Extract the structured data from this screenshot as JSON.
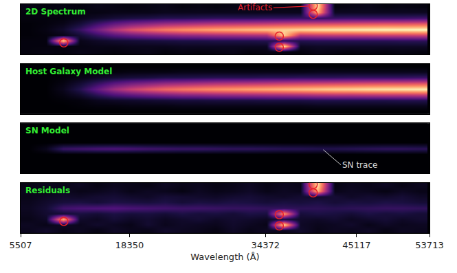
{
  "chart_data": [
    {
      "type": "heatmap",
      "title": "2D Spectrum",
      "x": [
        6507,
        8507,
        10507,
        12507,
        14507,
        16507,
        18507,
        20507,
        22507,
        24507,
        26507,
        28507,
        30507,
        32507,
        34507,
        36507,
        38507,
        40507,
        42507,
        44507,
        46507,
        48507,
        50507,
        52507
      ],
      "y": [
        0,
        1,
        2,
        3,
        4,
        5,
        6,
        7,
        8
      ],
      "z": [
        [
          0.02,
          0.03,
          0.02,
          0.04,
          0.03,
          0.02,
          0.03,
          0.04,
          0.02,
          0.03,
          0.02,
          0.03,
          0.04,
          0.02,
          0.03,
          0.03,
          0.02,
          0.04,
          0.03,
          0.02,
          0.03,
          0.02,
          0.03,
          0.02
        ],
        [
          0.02,
          0.02,
          0.03,
          0.03,
          0.04,
          0.04,
          0.05,
          0.05,
          0.05,
          0.06,
          0.06,
          0.06,
          0.06,
          0.06,
          0.06,
          0.95,
          0.06,
          0.07,
          0.07,
          0.07,
          0.07,
          0.07,
          0.07,
          0.07
        ],
        [
          0.02,
          0.02,
          0.9,
          0.04,
          0.07,
          0.09,
          0.1,
          0.11,
          0.12,
          0.13,
          0.13,
          0.14,
          0.14,
          0.14,
          0.15,
          0.15,
          0.15,
          0.16,
          0.16,
          0.16,
          0.16,
          0.16,
          0.17,
          0.17
        ],
        [
          0.01,
          0.02,
          0.04,
          0.1,
          0.19,
          0.27,
          0.32,
          0.36,
          0.39,
          0.42,
          0.43,
          0.45,
          0.46,
          0.47,
          0.48,
          0.9,
          0.5,
          0.52,
          0.53,
          0.53,
          0.54,
          0.55,
          0.55,
          0.56
        ],
        [
          0.01,
          0.03,
          0.08,
          0.19,
          0.34,
          0.49,
          0.6,
          0.67,
          0.73,
          0.77,
          0.8,
          0.83,
          0.85,
          0.87,
          0.89,
          0.91,
          0.93,
          0.95,
          0.96,
          0.97,
          0.98,
          0.99,
          0.99,
          1
        ],
        [
          0.01,
          0.02,
          0.04,
          0.1,
          0.2,
          0.29,
          0.35,
          0.39,
          0.43,
          0.45,
          0.47,
          0.49,
          0.5,
          0.51,
          0.52,
          0.54,
          0.55,
          0.56,
          0.57,
          0.58,
          0.59,
          0.6,
          0.6,
          0.61
        ],
        [
          0.02,
          0.02,
          0.02,
          0.04,
          0.07,
          0.1,
          0.12,
          0.13,
          0.15,
          0.15,
          0.16,
          0.17,
          0.17,
          0.17,
          0.18,
          0.18,
          0.19,
          0.19,
          0.19,
          0.2,
          0.2,
          0.2,
          0.2,
          0.21
        ],
        [
          0.02,
          0.03,
          0.02,
          0.03,
          0.03,
          0.04,
          0.04,
          0.04,
          0.05,
          0.05,
          0.05,
          0.05,
          0.05,
          0.05,
          0.05,
          0.05,
          0.05,
          0.85,
          0.06,
          0.06,
          0.06,
          0.06,
          0.06,
          0.06
        ],
        [
          0.03,
          0.02,
          0.03,
          0.02,
          0.04,
          0.03,
          0.02,
          0.03,
          0.04,
          0.02,
          0.03,
          0.02,
          0.03,
          0.04,
          0.02,
          0.03,
          0.03,
          0.95,
          0.02,
          0.03,
          0.04,
          0.02,
          0.03,
          0.02
        ]
      ],
      "zlim": [
        0,
        1
      ],
      "xlim": [
        5507,
        53713
      ],
      "ylim": [
        -0.5,
        8.5
      ],
      "tick_labels": false,
      "artifacts": {
        "label": "Artifacts",
        "points": [
          [
            10600,
            1.6
          ],
          [
            36000,
            2.8
          ],
          [
            36000,
            0.8
          ],
          [
            40000,
            8.2
          ],
          [
            40000,
            6.7
          ]
        ]
      }
    },
    {
      "type": "heatmap",
      "title": "Host Galaxy Model",
      "x": [
        6507,
        8507,
        10507,
        12507,
        14507,
        16507,
        18507,
        20507,
        22507,
        24507,
        26507,
        28507,
        30507,
        32507,
        34507,
        36507,
        38507,
        40507,
        42507,
        44507,
        46507,
        48507,
        50507,
        52507
      ],
      "y": [
        0,
        1,
        2,
        3,
        4,
        5,
        6,
        7,
        8
      ],
      "z": [
        [
          0,
          0,
          0,
          0,
          0,
          0,
          0,
          0,
          0,
          0,
          0,
          0,
          0,
          0,
          0,
          0,
          0,
          0,
          0,
          0,
          0,
          0,
          0,
          0
        ],
        [
          0,
          0,
          0,
          0.01,
          0.02,
          0.02,
          0.03,
          0.03,
          0.03,
          0.04,
          0.04,
          0.04,
          0.04,
          0.04,
          0.04,
          0.04,
          0.04,
          0.05,
          0.05,
          0.05,
          0.05,
          0.05,
          0.05,
          0.05
        ],
        [
          0,
          0,
          0.01,
          0.02,
          0.05,
          0.07,
          0.08,
          0.09,
          0.1,
          0.11,
          0.11,
          0.12,
          0.12,
          0.12,
          0.13,
          0.13,
          0.13,
          0.14,
          0.14,
          0.14,
          0.14,
          0.14,
          0.15,
          0.15
        ],
        [
          0,
          0,
          0.03,
          0.08,
          0.17,
          0.25,
          0.3,
          0.34,
          0.37,
          0.4,
          0.41,
          0.43,
          0.44,
          0.45,
          0.46,
          0.47,
          0.48,
          0.5,
          0.51,
          0.51,
          0.52,
          0.53,
          0.53,
          0.54
        ],
        [
          0,
          0,
          0.05,
          0.15,
          0.3,
          0.45,
          0.55,
          0.62,
          0.68,
          0.72,
          0.75,
          0.78,
          0.8,
          0.82,
          0.84,
          0.86,
          0.88,
          0.9,
          0.92,
          0.93,
          0.95,
          0.96,
          0.97,
          0.98
        ],
        [
          0,
          0,
          0.03,
          0.09,
          0.18,
          0.27,
          0.33,
          0.37,
          0.41,
          0.43,
          0.45,
          0.47,
          0.48,
          0.49,
          0.5,
          0.52,
          0.53,
          0.54,
          0.55,
          0.56,
          0.57,
          0.58,
          0.58,
          0.59
        ],
        [
          0,
          0,
          0.01,
          0.03,
          0.06,
          0.09,
          0.11,
          0.12,
          0.14,
          0.14,
          0.15,
          0.16,
          0.16,
          0.16,
          0.17,
          0.17,
          0.18,
          0.18,
          0.18,
          0.19,
          0.19,
          0.19,
          0.19,
          0.2
        ],
        [
          0,
          0,
          0,
          0.01,
          0.02,
          0.02,
          0.03,
          0.03,
          0.03,
          0.04,
          0.04,
          0.04,
          0.04,
          0.04,
          0.04,
          0.04,
          0.04,
          0.05,
          0.05,
          0.05,
          0.05,
          0.05,
          0.05,
          0.05
        ],
        [
          0,
          0,
          0,
          0,
          0,
          0,
          0,
          0,
          0,
          0,
          0,
          0,
          0,
          0,
          0,
          0,
          0,
          0,
          0,
          0,
          0,
          0,
          0,
          0
        ]
      ],
      "zlim": [
        0,
        1
      ],
      "xlim": [
        5507,
        53713
      ],
      "ylim": [
        -0.5,
        8.5
      ],
      "tick_labels": false
    },
    {
      "type": "heatmap",
      "title": "SN Model",
      "x": [
        6507,
        8507,
        10507,
        12507,
        14507,
        16507,
        18507,
        20507,
        22507,
        24507,
        26507,
        28507,
        30507,
        32507,
        34507,
        36507,
        38507,
        40507,
        42507,
        44507,
        46507,
        48507,
        50507,
        52507
      ],
      "y": [
        0,
        1,
        2,
        3,
        4,
        5,
        6,
        7,
        8
      ],
      "z": [
        [
          0,
          0,
          0,
          0,
          0,
          0,
          0,
          0,
          0,
          0,
          0,
          0,
          0,
          0,
          0,
          0,
          0,
          0,
          0,
          0,
          0,
          0,
          0,
          0
        ],
        [
          0,
          0,
          0,
          0,
          0,
          0,
          0,
          0,
          0,
          0,
          0,
          0,
          0,
          0,
          0,
          0,
          0,
          0,
          0,
          0,
          0,
          0,
          0,
          0
        ],
        [
          0,
          0,
          0,
          0,
          0,
          0,
          0,
          0,
          0,
          0,
          0,
          0,
          0,
          0,
          0,
          0,
          0,
          0,
          0,
          0,
          0,
          0,
          0,
          0
        ],
        [
          0,
          0,
          0,
          0,
          0,
          0,
          0,
          0,
          0,
          0,
          0,
          0,
          0,
          0,
          0,
          0,
          0,
          0,
          0,
          0,
          0,
          0,
          0,
          0
        ],
        [
          0,
          0.05,
          0.2,
          0.22,
          0.24,
          0.25,
          0.24,
          0.22,
          0.21,
          0.2,
          0.2,
          0.19,
          0.18,
          0.18,
          0.17,
          0.16,
          0.16,
          0.15,
          0.15,
          0.16,
          0.17,
          0.18,
          0.18,
          0.17
        ],
        [
          0,
          0,
          0,
          0,
          0,
          0,
          0,
          0,
          0,
          0,
          0,
          0,
          0,
          0,
          0,
          0,
          0,
          0,
          0,
          0,
          0,
          0,
          0,
          0
        ],
        [
          0,
          0,
          0,
          0,
          0,
          0,
          0,
          0,
          0,
          0,
          0,
          0,
          0,
          0,
          0,
          0,
          0,
          0,
          0,
          0,
          0,
          0,
          0,
          0
        ],
        [
          0,
          0,
          0,
          0,
          0,
          0,
          0,
          0,
          0,
          0,
          0,
          0,
          0,
          0,
          0,
          0,
          0,
          0,
          0,
          0,
          0,
          0,
          0,
          0
        ],
        [
          0,
          0,
          0,
          0,
          0,
          0,
          0,
          0,
          0,
          0,
          0,
          0,
          0,
          0,
          0,
          0,
          0,
          0,
          0,
          0,
          0,
          0,
          0,
          0
        ]
      ],
      "zlim": [
        0,
        1
      ],
      "xlim": [
        5507,
        53713
      ],
      "ylim": [
        -0.5,
        8.5
      ],
      "tick_labels": false,
      "annotation": {
        "text": "SN trace",
        "x": 41000,
        "y": 4
      }
    },
    {
      "type": "heatmap",
      "title": "Residuals",
      "x": [
        6507,
        8507,
        10507,
        12507,
        14507,
        16507,
        18507,
        20507,
        22507,
        24507,
        26507,
        28507,
        30507,
        32507,
        34507,
        36507,
        38507,
        40507,
        42507,
        44507,
        46507,
        48507,
        50507,
        52507
      ],
      "y": [
        0,
        1,
        2,
        3,
        4,
        5,
        6,
        7,
        8
      ],
      "z": [
        [
          0.05,
          0.08,
          0.04,
          0.06,
          0.03,
          0.07,
          0.05,
          0.04,
          0.08,
          0.06,
          0.05,
          0.03,
          0.07,
          0.04,
          0.06,
          0.05,
          0.08,
          0.04,
          0.06,
          0.05,
          0.07,
          0.03,
          0.06,
          0.05
        ],
        [
          0.06,
          0.04,
          0.07,
          0.05,
          0.08,
          0.06,
          0.04,
          0.09,
          0.05,
          0.07,
          0.06,
          0.05,
          0.08,
          0.06,
          0.04,
          0.95,
          0.07,
          0.05,
          0.06,
          0.08,
          0.04,
          0.07,
          0.05,
          0.06
        ],
        [
          0.04,
          0.07,
          0.85,
          0.08,
          0.06,
          0.1,
          0.07,
          0.09,
          0.06,
          0.08,
          0.1,
          0.07,
          0.09,
          0.08,
          0.06,
          0.1,
          0.08,
          0.07,
          0.09,
          0.06,
          0.08,
          0.1,
          0.07,
          0.09
        ],
        [
          0.05,
          0.09,
          0.1,
          0.12,
          0.1,
          0.13,
          0.11,
          0.12,
          0.1,
          0.13,
          0.11,
          0.12,
          0.1,
          0.13,
          0.12,
          0.8,
          0.11,
          0.13,
          0.12,
          0.1,
          0.13,
          0.11,
          0.12,
          0.1
        ],
        [
          0.06,
          0.1,
          0.22,
          0.24,
          0.25,
          0.26,
          0.24,
          0.23,
          0.22,
          0.21,
          0.21,
          0.2,
          0.19,
          0.19,
          0.18,
          0.18,
          0.17,
          0.17,
          0.16,
          0.17,
          0.18,
          0.19,
          0.19,
          0.18
        ],
        [
          0.05,
          0.08,
          0.11,
          0.12,
          0.1,
          0.13,
          0.12,
          0.11,
          0.13,
          0.1,
          0.12,
          0.11,
          0.13,
          0.12,
          0.1,
          0.12,
          0.11,
          0.13,
          0.1,
          0.12,
          0.11,
          0.13,
          0.12,
          0.1
        ],
        [
          0.04,
          0.06,
          0.08,
          0.07,
          0.09,
          0.1,
          0.08,
          0.07,
          0.1,
          0.09,
          0.08,
          0.07,
          0.09,
          0.1,
          0.08,
          0.07,
          0.09,
          0.08,
          0.1,
          0.07,
          0.09,
          0.08,
          0.1,
          0.07
        ],
        [
          0.05,
          0.03,
          0.06,
          0.04,
          0.05,
          0.07,
          0.04,
          0.06,
          0.05,
          0.03,
          0.06,
          0.04,
          0.05,
          0.07,
          0.04,
          0.06,
          0.05,
          0.85,
          0.04,
          0.06,
          0.05,
          0.03,
          0.06,
          0.04
        ],
        [
          0.03,
          0.05,
          0.04,
          0.06,
          0.03,
          0.05,
          0.04,
          0.03,
          0.06,
          0.04,
          0.05,
          0.03,
          0.04,
          0.06,
          0.03,
          0.05,
          0.04,
          0.95,
          0.03,
          0.05,
          0.04,
          0.06,
          0.03,
          0.05
        ]
      ],
      "zlim": [
        0,
        1
      ],
      "xlim": [
        5507,
        53713
      ],
      "ylim": [
        -0.5,
        8.5
      ],
      "tick_labels": "x",
      "xticks": [
        5507,
        18350,
        34372,
        45117,
        53713
      ],
      "xlabel": "Wavelength (Å)",
      "artifacts": {
        "points": [
          [
            10600,
            1.6
          ],
          [
            36000,
            2.8
          ],
          [
            36000,
            0.8
          ],
          [
            40000,
            8.2
          ],
          [
            40000,
            6.7
          ]
        ]
      }
    }
  ]
}
